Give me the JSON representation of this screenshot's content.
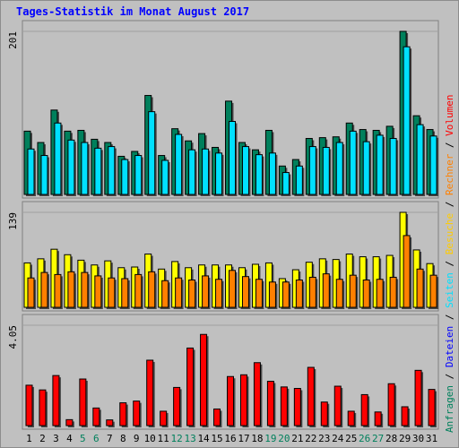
{
  "title": "Tages-Statistik im Monat August 2017",
  "colors": {
    "panel_bg": "#c0c0c0",
    "anfragen": "#00805c",
    "dateien": "#00e0ff",
    "besuche": "#ffff00",
    "rechner": "#ff8000",
    "volumen": "#ff0000",
    "weekend_label": "#00805c",
    "weekday_label": "#000000",
    "legend_separator": "#000000"
  },
  "chart_data": [
    {
      "type": "bar",
      "panel": "top",
      "ymax_label": "201",
      "ylim": [
        0,
        201
      ],
      "x": [
        1,
        2,
        3,
        4,
        5,
        6,
        7,
        8,
        9,
        10,
        11,
        12,
        13,
        14,
        15,
        16,
        17,
        18,
        19,
        20,
        21,
        22,
        23,
        24,
        25,
        26,
        27,
        28,
        29,
        30,
        31
      ],
      "weekend_days": [
        5,
        6,
        12,
        13,
        19,
        20,
        26,
        27
      ],
      "series": [
        {
          "name": "Anfragen",
          "values": [
            78,
            64,
            104,
            78,
            79,
            68,
            64,
            47,
            53,
            122,
            48,
            81,
            66,
            75,
            58,
            115,
            64,
            55,
            79,
            35,
            43,
            69,
            70,
            71,
            88,
            80,
            79,
            84,
            201,
            97,
            80
          ]
        },
        {
          "name": "Dateien",
          "values": [
            56,
            48,
            88,
            67,
            64,
            57,
            59,
            43,
            48,
            102,
            42,
            74,
            55,
            56,
            51,
            90,
            59,
            49,
            51,
            27,
            35,
            59,
            58,
            64,
            78,
            65,
            73,
            69,
            182,
            86,
            72
          ]
        }
      ]
    },
    {
      "type": "bar",
      "panel": "middle",
      "ymax_label": "139",
      "ylim": [
        0,
        139
      ],
      "x": [
        1,
        2,
        3,
        4,
        5,
        6,
        7,
        8,
        9,
        10,
        11,
        12,
        13,
        14,
        15,
        16,
        17,
        18,
        19,
        20,
        21,
        22,
        23,
        24,
        25,
        26,
        27,
        28,
        29,
        30,
        31
      ],
      "series": [
        {
          "name": "Besuche",
          "values": [
            65,
            71,
            85,
            77,
            69,
            62,
            68,
            58,
            59,
            78,
            56,
            67,
            58,
            62,
            62,
            62,
            58,
            63,
            65,
            42,
            55,
            66,
            71,
            70,
            78,
            74,
            74,
            76,
            139,
            84,
            64
          ]
        },
        {
          "name": "Rechner",
          "values": [
            43,
            51,
            48,
            52,
            51,
            46,
            43,
            42,
            48,
            52,
            39,
            43,
            40,
            46,
            41,
            54,
            45,
            41,
            37,
            37,
            40,
            44,
            49,
            41,
            47,
            40,
            41,
            44,
            105,
            56,
            47
          ]
        }
      ]
    },
    {
      "type": "bar",
      "panel": "bottom",
      "ymax_label": "4.05",
      "ylim": [
        0,
        4.05
      ],
      "x": [
        1,
        2,
        3,
        4,
        5,
        6,
        7,
        8,
        9,
        10,
        11,
        12,
        13,
        14,
        15,
        16,
        17,
        18,
        19,
        20,
        21,
        22,
        23,
        24,
        25,
        26,
        27,
        28,
        29,
        30,
        31
      ],
      "series": [
        {
          "name": "Volumen",
          "values": [
            1.63,
            1.44,
            2.02,
            0.24,
            1.88,
            0.71,
            0.23,
            0.92,
            0.99,
            2.64,
            0.58,
            1.54,
            3.13,
            3.68,
            0.67,
            1.98,
            2.05,
            2.54,
            1.79,
            1.56,
            1.5,
            2.35,
            0.95,
            1.59,
            0.58,
            1.25,
            0.55,
            1.69,
            0.76,
            2.23,
            1.46
          ]
        }
      ]
    }
  ],
  "legend": [
    {
      "label": "Anfragen",
      "color": "#00805c"
    },
    {
      "label": "Dateien",
      "color": "#0000ff"
    },
    {
      "label": "Seiten",
      "color": "#00e0ff"
    },
    {
      "label": "Besuche",
      "color": "#ffcc00"
    },
    {
      "label": "Rechner",
      "color": "#ff8000"
    },
    {
      "label": "Volumen",
      "color": "#ff0000"
    }
  ],
  "legend_separator": "/"
}
